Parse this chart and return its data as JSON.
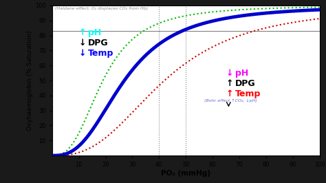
{
  "xlabel": "PO₂ (mmHg)",
  "ylabel": "Oxyhaemoglobin (% Saturation)",
  "xlim": [
    0,
    100
  ],
  "ylim": [
    0,
    100
  ],
  "xticks": [
    10,
    20,
    30,
    40,
    50,
    60,
    70,
    80,
    90,
    100
  ],
  "yticks": [
    10,
    20,
    30,
    40,
    50,
    60,
    70,
    80,
    90,
    100
  ],
  "haldane_text": "(Haldane effect: O₂ displaces CO₂ from Hb)",
  "bohr_text": "(Bohr effect ↑CO₂, ↓pH)",
  "hline_y": 83,
  "vline1_x": 40,
  "vline2_x": 50,
  "background_color": "#ffffff",
  "fig_bg": "#1a1a1a",
  "curves": {
    "fetal_hb": {
      "p50": 19,
      "n": 2.7,
      "color": "#00bb00",
      "linestyle": "dotted",
      "linewidth": 1.5
    },
    "normal": {
      "p50": 27,
      "n": 2.7,
      "color": "#0000cc",
      "linestyle": "solid",
      "linewidth": 3.5
    },
    "shifted_right": {
      "p50": 42,
      "n": 2.7,
      "color": "#cc0000",
      "linestyle": "dotted",
      "linewidth": 1.5
    }
  },
  "left_ann": {
    "x": 10,
    "y_pH": 82,
    "y_DPG": 75,
    "y_Temp": 68,
    "pH_label": "pH",
    "pH_color": "cyan",
    "DPG_label": "DPG",
    "DPG_color": "black",
    "Temp_label": "Temp",
    "Temp_color": "blue",
    "up_pH": true,
    "up_DPG": false,
    "up_Temp": false
  },
  "right_ann": {
    "x": 65,
    "y_pH": 55,
    "y_DPG": 48,
    "y_Temp": 41,
    "pH_label": "pH",
    "pH_color": "magenta",
    "DPG_label": "DPG",
    "DPG_color": "black",
    "Temp_label": "Temp",
    "Temp_color": "red",
    "up_pH": false,
    "up_DPG": true,
    "up_Temp": true
  }
}
